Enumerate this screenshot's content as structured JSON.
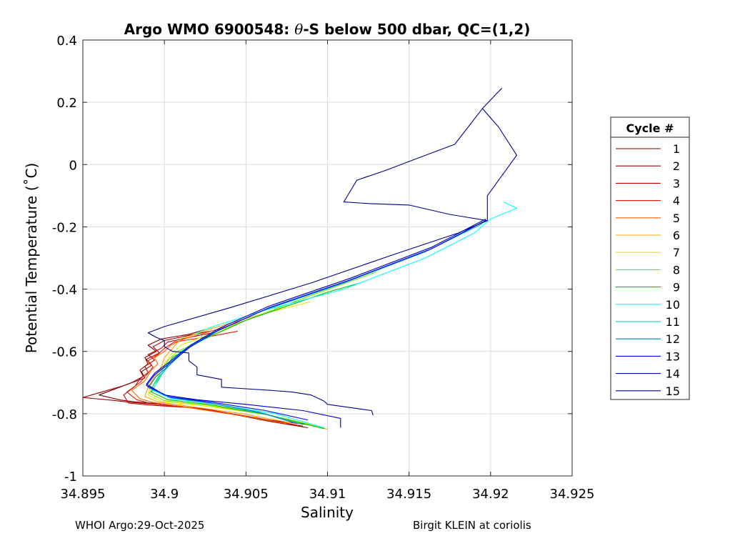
{
  "chart_data": {
    "type": "line",
    "title_prefix": "Argo WMO 6900548: ",
    "title_theta": "θ",
    "title_suffix": "-S below 500 dbar,  QC=(1,2)",
    "xlabel": "Salinity",
    "ylabel": "Potential Temperature (˚C)",
    "xlim": [
      34.895,
      34.925
    ],
    "ylim": [
      -1,
      0.4
    ],
    "xticks": [
      34.895,
      34.9,
      34.905,
      34.91,
      34.915,
      34.92,
      34.925
    ],
    "xtick_labels": [
      "34.895",
      "34.9",
      "34.905",
      "34.91",
      "34.915",
      "34.92",
      "34.925"
    ],
    "yticks": [
      0.4,
      0.2,
      0,
      -0.2,
      -0.4,
      -0.6,
      -0.8,
      -1
    ],
    "ytick_labels": [
      "0.4",
      "0.2",
      "0",
      "-0.2",
      "-0.4",
      "-0.6",
      "-0.8",
      "-1"
    ],
    "grid": true,
    "legend_title": "Cycle #",
    "legend_position": "right",
    "series": [
      {
        "name": "1",
        "color": "#800000",
        "x": [
          34.9088,
          34.9065,
          34.903,
          34.8998,
          34.8982,
          34.8973,
          34.896,
          34.898,
          34.8987,
          34.8985,
          34.899,
          34.8988,
          34.8995,
          34.899,
          34.8998,
          34.9015,
          34.9025
        ],
        "y": [
          -0.845,
          -0.825,
          -0.79,
          -0.768,
          -0.762,
          -0.756,
          -0.74,
          -0.7,
          -0.68,
          -0.66,
          -0.64,
          -0.62,
          -0.6,
          -0.58,
          -0.56,
          -0.545,
          -0.53
        ]
      },
      {
        "name": "2",
        "color": "#9f0000",
        "x": [
          34.9088,
          34.906,
          34.9025,
          34.8995,
          34.898,
          34.8968,
          34.895,
          34.8975,
          34.8988,
          34.8986,
          34.8992,
          34.8989,
          34.8997,
          34.8993,
          34.9,
          34.9018,
          34.9038
        ],
        "y": [
          -0.835,
          -0.818,
          -0.785,
          -0.77,
          -0.764,
          -0.757,
          -0.748,
          -0.71,
          -0.685,
          -0.665,
          -0.645,
          -0.625,
          -0.605,
          -0.585,
          -0.565,
          -0.545,
          -0.525
        ]
      },
      {
        "name": "3",
        "color": "#bf0000",
        "x": [
          34.9085,
          34.9055,
          34.902,
          34.899,
          34.8978,
          34.8975,
          34.8982,
          34.8985,
          34.899,
          34.8988,
          34.8994,
          34.899,
          34.8998,
          34.9002,
          34.902,
          34.903
        ],
        "y": [
          -0.84,
          -0.812,
          -0.782,
          -0.772,
          -0.766,
          -0.74,
          -0.712,
          -0.688,
          -0.668,
          -0.648,
          -0.628,
          -0.61,
          -0.59,
          -0.57,
          -0.55,
          -0.54
        ]
      },
      {
        "name": "4",
        "color": "#df2000",
        "x": [
          34.9082,
          34.905,
          34.9015,
          34.8992,
          34.8983,
          34.8977,
          34.8985,
          34.899,
          34.8993,
          34.899,
          34.8996,
          34.9,
          34.9006,
          34.903,
          34.9045
        ],
        "y": [
          -0.838,
          -0.808,
          -0.78,
          -0.768,
          -0.755,
          -0.73,
          -0.7,
          -0.67,
          -0.65,
          -0.63,
          -0.61,
          -0.59,
          -0.57,
          -0.55,
          -0.535
        ]
      },
      {
        "name": "5",
        "color": "#ff6000",
        "x": [
          34.9075,
          34.9045,
          34.9012,
          34.8994,
          34.8985,
          34.898,
          34.8988,
          34.8992,
          34.8996,
          34.8994,
          34.9,
          34.9004,
          34.9012,
          34.9032,
          34.905
        ],
        "y": [
          -0.832,
          -0.805,
          -0.778,
          -0.765,
          -0.752,
          -0.725,
          -0.695,
          -0.66,
          -0.64,
          -0.62,
          -0.6,
          -0.58,
          -0.56,
          -0.53,
          -0.5
        ]
      },
      {
        "name": "6",
        "color": "#ffa000",
        "x": [
          34.9078,
          34.9048,
          34.9015,
          34.8996,
          34.8988,
          34.899,
          34.8994,
          34.8998,
          34.9,
          34.9005,
          34.901,
          34.903,
          34.906
        ],
        "y": [
          -0.83,
          -0.8,
          -0.776,
          -0.762,
          -0.745,
          -0.715,
          -0.68,
          -0.65,
          -0.62,
          -0.59,
          -0.56,
          -0.525,
          -0.48
        ]
      },
      {
        "name": "7",
        "color": "#e6e600",
        "x": [
          34.9095,
          34.906,
          34.9022,
          34.8998,
          34.899,
          34.8992,
          34.8996,
          34.9,
          34.9004,
          34.901,
          34.903,
          34.906,
          34.909
        ],
        "y": [
          -0.84,
          -0.8,
          -0.774,
          -0.76,
          -0.74,
          -0.705,
          -0.67,
          -0.64,
          -0.61,
          -0.58,
          -0.54,
          -0.48,
          -0.44
        ]
      },
      {
        "name": "8",
        "color": "#80e000",
        "x": [
          34.91,
          34.9065,
          34.9025,
          34.9,
          34.8991,
          34.8994,
          34.8998,
          34.9002,
          34.9008,
          34.9025,
          34.905,
          34.909,
          34.913
        ],
        "y": [
          -0.85,
          -0.805,
          -0.772,
          -0.758,
          -0.735,
          -0.7,
          -0.665,
          -0.63,
          -0.6,
          -0.56,
          -0.5,
          -0.42,
          -0.345
        ]
      },
      {
        "name": "9",
        "color": "#00c000",
        "x": [
          34.9098,
          34.9063,
          34.9027,
          34.9002,
          34.8992,
          34.8996,
          34.9,
          34.9005,
          34.902,
          34.905,
          34.91,
          34.912
        ],
        "y": [
          -0.848,
          -0.803,
          -0.77,
          -0.755,
          -0.73,
          -0.695,
          -0.66,
          -0.62,
          -0.57,
          -0.5,
          -0.41,
          -0.38
        ]
      },
      {
        "name": "10",
        "color": "#00ffff",
        "x": [
          34.9098,
          34.9068,
          34.903,
          34.9004,
          34.8993,
          34.8996,
          34.9002,
          34.901,
          34.9025,
          34.902,
          34.903,
          34.906,
          34.911,
          34.916,
          34.919,
          34.92,
          34.9216,
          34.9208
        ],
        "y": [
          -0.845,
          -0.8,
          -0.768,
          -0.752,
          -0.725,
          -0.69,
          -0.65,
          -0.6,
          -0.56,
          -0.54,
          -0.52,
          -0.47,
          -0.4,
          -0.3,
          -0.22,
          -0.175,
          -0.14,
          -0.12
        ]
      },
      {
        "name": "11",
        "color": "#00c0c0",
        "x": [
          34.9085,
          34.906,
          34.903,
          34.9005,
          34.8992,
          34.8996,
          34.9003,
          34.9012,
          34.903,
          34.906,
          34.911,
          34.916,
          34.9195
        ],
        "y": [
          -0.835,
          -0.798,
          -0.768,
          -0.75,
          -0.72,
          -0.685,
          -0.645,
          -0.595,
          -0.54,
          -0.47,
          -0.38,
          -0.28,
          -0.19
        ]
      },
      {
        "name": "12",
        "color": "#0080c0",
        "x": [
          34.908,
          34.9058,
          34.9028,
          34.9004,
          34.899,
          34.8995,
          34.9004,
          34.9014,
          34.9032,
          34.9062,
          34.9112,
          34.9162,
          34.9195
        ],
        "y": [
          -0.83,
          -0.795,
          -0.766,
          -0.748,
          -0.716,
          -0.68,
          -0.64,
          -0.59,
          -0.535,
          -0.465,
          -0.375,
          -0.275,
          -0.185
        ]
      },
      {
        "name": "13",
        "color": "#0000ff",
        "x": [
          34.9088,
          34.9062,
          34.903,
          34.9003,
          34.8989,
          34.8994,
          34.9004,
          34.9016,
          34.9034,
          34.9064,
          34.9114,
          34.9164,
          34.9197
        ],
        "y": [
          -0.82,
          -0.79,
          -0.764,
          -0.746,
          -0.71,
          -0.675,
          -0.635,
          -0.585,
          -0.53,
          -0.46,
          -0.37,
          -0.27,
          -0.18
        ]
      },
      {
        "name": "14",
        "color": "#0000c0",
        "x": [
          34.9108,
          34.9108,
          34.9085,
          34.905,
          34.902,
          34.9,
          34.8989,
          34.8994,
          34.9004,
          34.9016,
          34.9034,
          34.9064,
          34.9114,
          34.9164,
          34.9197
        ],
        "y": [
          -0.845,
          -0.815,
          -0.79,
          -0.77,
          -0.755,
          -0.74,
          -0.705,
          -0.67,
          -0.63,
          -0.58,
          -0.525,
          -0.455,
          -0.365,
          -0.265,
          -0.175
        ]
      },
      {
        "name": "15",
        "color": "#00008c",
        "x": [
          34.9128,
          34.9127,
          34.91,
          34.9098,
          34.909,
          34.9078,
          34.9065,
          34.905,
          34.9035,
          34.9035,
          34.902,
          34.902,
          34.9015,
          34.9015,
          34.9005,
          34.9,
          34.9,
          34.8995,
          34.899,
          34.9,
          34.904,
          34.909,
          34.914,
          34.918,
          34.9198,
          34.9198,
          34.9216,
          34.9205,
          34.9195,
          34.9178,
          34.9155,
          34.9135,
          34.9118,
          34.911,
          34.9125,
          34.915,
          34.9175,
          34.9198
        ],
        "y": [
          -0.805,
          -0.79,
          -0.77,
          -0.76,
          -0.74,
          -0.73,
          -0.725,
          -0.72,
          -0.715,
          -0.69,
          -0.675,
          -0.65,
          -0.63,
          -0.605,
          -0.6,
          -0.585,
          -0.565,
          -0.555,
          -0.54,
          -0.52,
          -0.46,
          -0.38,
          -0.29,
          -0.22,
          -0.18,
          -0.1,
          0.03,
          0.12,
          0.18,
          0.065,
          0.02,
          -0.02,
          -0.05,
          -0.12,
          -0.125,
          -0.13,
          -0.16,
          -0.18
        ]
      },
      {
        "name": "15b",
        "color": "#00008c",
        "hidden_in_legend": true,
        "x": [
          34.9195,
          34.9205,
          34.9207
        ],
        "y": [
          0.18,
          0.235,
          0.245
        ]
      }
    ]
  },
  "footer": {
    "left": "WHOI Argo:29-Oct-2025",
    "right": "Birgit KLEIN at coriolis"
  }
}
